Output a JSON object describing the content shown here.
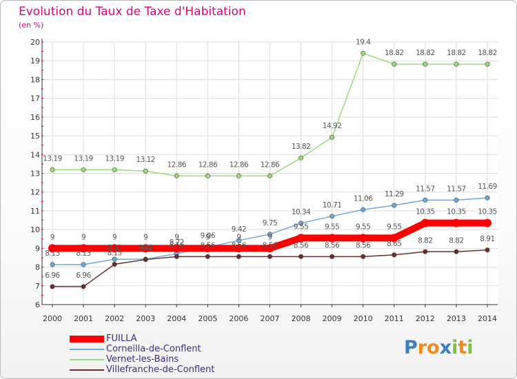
{
  "chart_data": {
    "type": "line",
    "title": "Evolution du Taux de Taxe d'Habitation",
    "subtitle": "(en %)",
    "x": [
      "2000",
      "2001",
      "2002",
      "2003",
      "2004",
      "2005",
      "2006",
      "2007",
      "2008",
      "2009",
      "2010",
      "2011",
      "2012",
      "2013",
      "2014"
    ],
    "ylim": [
      6,
      20
    ],
    "yticks": [
      "6",
      "7",
      "8",
      "9",
      "10",
      "11",
      "12",
      "13",
      "14",
      "15",
      "16",
      "17",
      "18",
      "19",
      "20"
    ],
    "grid": true,
    "legend_position": "bottom-left",
    "series": [
      {
        "name": "FUILLA",
        "color": "#ff0000",
        "values": [
          9,
          9,
          9,
          9,
          9,
          9,
          9,
          9,
          9.55,
          9.55,
          9.55,
          9.55,
          10.35,
          10.35,
          10.35
        ],
        "labels": [
          "9",
          "9",
          "9",
          "9",
          "9",
          "9",
          "9",
          "9",
          "9.55",
          "9.55",
          "9.55",
          "9.55",
          "10.35",
          "10.35",
          "10.35"
        ]
      },
      {
        "name": "Corneilla-de-Conflent",
        "color": "#6fa8dc",
        "values": [
          8.13,
          8.13,
          8.42,
          8.42,
          8.72,
          9.06,
          9.42,
          9.75,
          10.34,
          10.71,
          11.06,
          11.29,
          11.57,
          11.57,
          11.69
        ],
        "labels": [
          "8.13",
          "8.13",
          "8.42",
          "8.42",
          "8.72",
          "9.06",
          "9.42",
          "9.75",
          "10.34",
          "10.71",
          "11.06",
          "11.29",
          "11.57",
          "11.57",
          "11.69"
        ]
      },
      {
        "name": "Vernet-les-Bains",
        "color": "#99dd77",
        "values": [
          13.19,
          13.19,
          13.19,
          13.12,
          12.86,
          12.86,
          12.86,
          12.86,
          13.82,
          14.92,
          19.4,
          18.82,
          18.82,
          18.82,
          18.82
        ],
        "labels": [
          "13.19",
          "13.19",
          "13.19",
          "13.12",
          "12.86",
          "12.86",
          "12.86",
          "12.86",
          "13.82",
          "14.92",
          "19.4",
          "18.82",
          "18.82",
          "18.82",
          "18.82"
        ]
      },
      {
        "name": "Villefranche-de-Conflent",
        "color": "#6b2b2b",
        "values": [
          6.96,
          6.96,
          8.15,
          8.4,
          8.56,
          8.56,
          8.56,
          8.56,
          8.56,
          8.56,
          8.56,
          8.65,
          8.82,
          8.82,
          8.91
        ],
        "labels": [
          "6.96",
          "6.96",
          "8.15",
          "8.4",
          "8.56",
          "8.56",
          "8.56",
          "8.56",
          "8.56",
          "8.56",
          "8.56",
          "8.65",
          "8.82",
          "8.82",
          "8.91"
        ]
      }
    ]
  },
  "logo": {
    "text": "Proxiti",
    "letters": [
      "P",
      "r",
      "o",
      "x",
      "i",
      "t",
      "i"
    ],
    "colors": [
      "#3a7fc2",
      "#f08a1c",
      "#f08a1c",
      "#3a7fc2",
      "#7dc142",
      "#f08a1c",
      "#7dc142"
    ]
  }
}
